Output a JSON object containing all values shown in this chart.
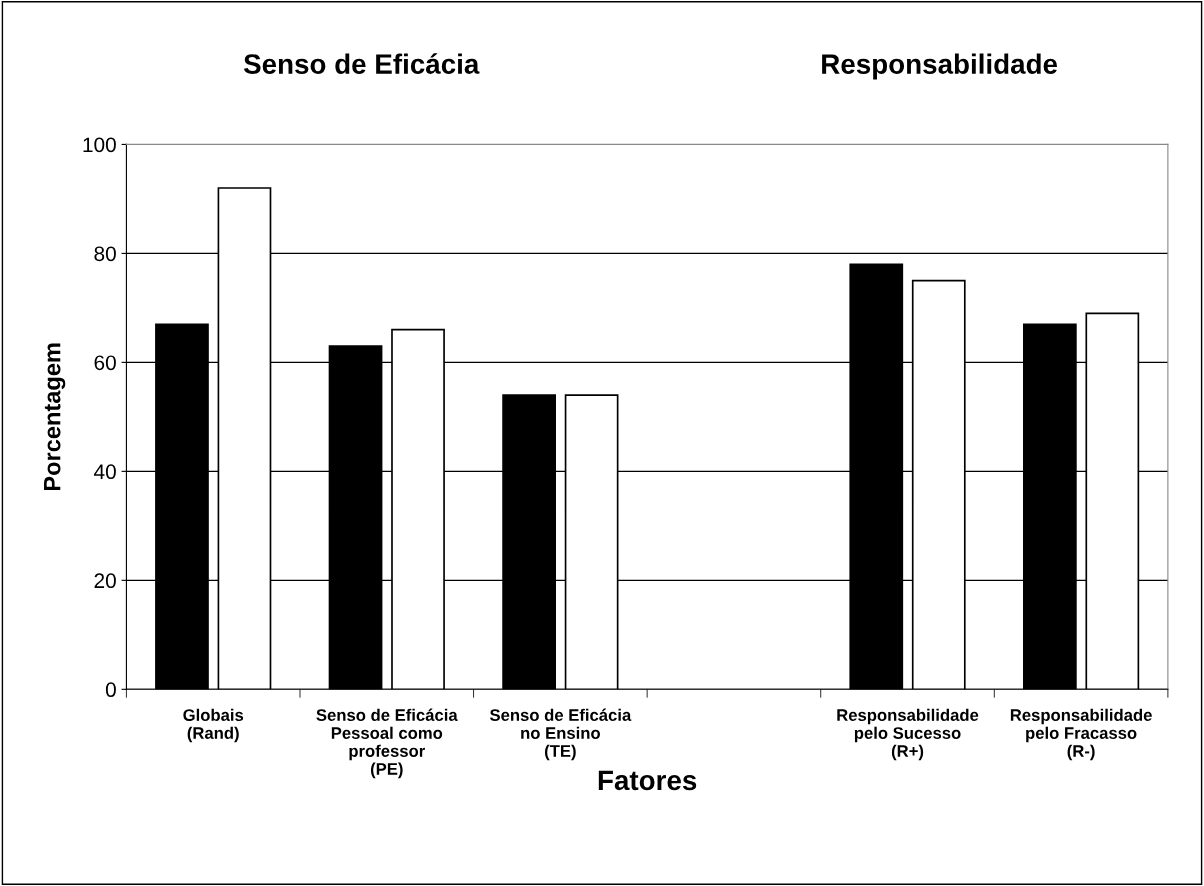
{
  "chart_data": {
    "type": "bar",
    "xlabel": "Fatores",
    "ylabel": "Porcentagem",
    "annotations": [
      "Senso de Eficácia",
      "Responsabilidade"
    ],
    "categories": [
      "Globais\n(Rand)",
      "Senso de Eficácia\nPessoal como\nprofessor\n(PE)",
      "Senso de Eficácia\nno Ensino\n(TE)",
      null,
      "Responsabilidade\npelo Sucesso\n(R+)",
      "Responsabilidade\npelo Fracasso\n(R-)"
    ],
    "series": [
      {
        "color": "#000000",
        "values": [
          67,
          63,
          54,
          null,
          78,
          67
        ]
      },
      {
        "color": "#ffffff",
        "values": [
          92,
          66,
          54,
          null,
          75,
          69
        ]
      }
    ],
    "ylim": [
      0,
      100
    ],
    "yticks": [
      0,
      20,
      40,
      60,
      80,
      100
    ],
    "grid": "y"
  }
}
